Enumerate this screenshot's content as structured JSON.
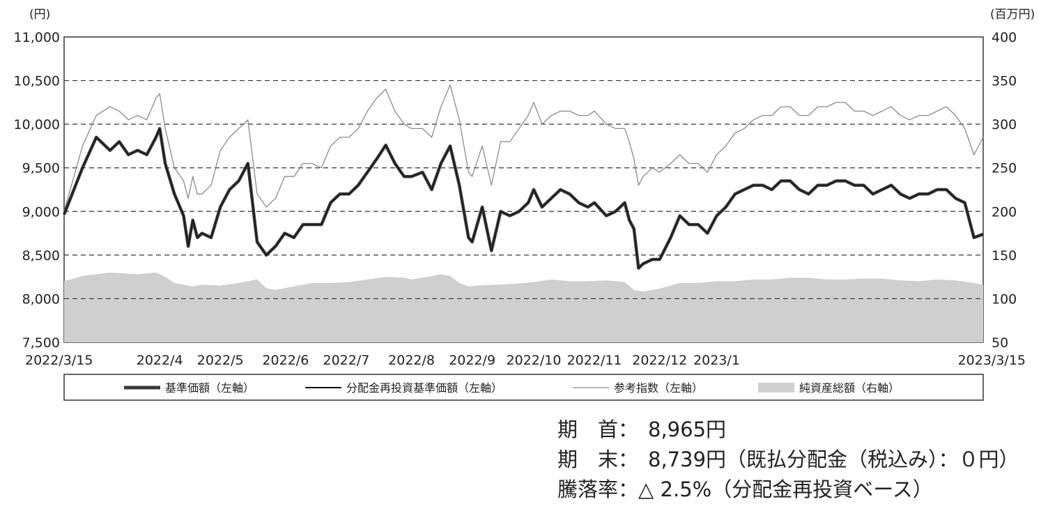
{
  "chart_data": {
    "type": "line",
    "left_axis": {
      "unit": "(円)",
      "ylim": [
        7500,
        11000
      ],
      "ticks": [
        "11,000",
        "10,500",
        "10,000",
        "9,500",
        "9,000",
        "8,500",
        "8,000",
        "7,500"
      ],
      "tick_values": [
        11000,
        10500,
        10000,
        9500,
        9000,
        8500,
        8000,
        7500
      ]
    },
    "right_axis": {
      "unit": "(百万円)",
      "ylim": [
        50,
        400
      ],
      "ticks": [
        "400",
        "350",
        "300",
        "250",
        "200",
        "150",
        "100",
        "50"
      ],
      "tick_values": [
        400,
        350,
        300,
        250,
        200,
        150,
        100,
        50
      ]
    },
    "x_labels": [
      {
        "label": "2022/3/15",
        "pos": 0
      },
      {
        "label": "2022/4",
        "pos": 0.104
      },
      {
        "label": "2022/5",
        "pos": 0.17
      },
      {
        "label": "2022/6",
        "pos": 0.241
      },
      {
        "label": "2022/7",
        "pos": 0.307
      },
      {
        "label": "2022/8",
        "pos": 0.378
      },
      {
        "label": "2022/9",
        "pos": 0.444
      },
      {
        "label": "2022/10",
        "pos": 0.511
      },
      {
        "label": "2022/11",
        "pos": 0.577
      },
      {
        "label": "2022/12",
        "pos": 0.648
      },
      {
        "label": "2023/1",
        "pos": 0.71
      },
      {
        "label": "2023/3/15",
        "pos": 1
      }
    ],
    "grid": "dashed horizontal",
    "legend_position": "bottom",
    "series": [
      {
        "name": "基準価額（左軸）",
        "axis": "left",
        "style": "thick-dark",
        "x": [
          0,
          0.02,
          0.035,
          0.05,
          0.06,
          0.07,
          0.08,
          0.09,
          0.1,
          0.104,
          0.11,
          0.12,
          0.13,
          0.135,
          0.14,
          0.145,
          0.15,
          0.16,
          0.17,
          0.18,
          0.19,
          0.2,
          0.21,
          0.22,
          0.23,
          0.24,
          0.25,
          0.26,
          0.27,
          0.28,
          0.29,
          0.3,
          0.31,
          0.32,
          0.33,
          0.34,
          0.35,
          0.36,
          0.37,
          0.378,
          0.39,
          0.4,
          0.41,
          0.42,
          0.43,
          0.44,
          0.444,
          0.455,
          0.465,
          0.475,
          0.485,
          0.495,
          0.505,
          0.511,
          0.52,
          0.53,
          0.54,
          0.55,
          0.56,
          0.57,
          0.577,
          0.59,
          0.6,
          0.61,
          0.615,
          0.62,
          0.625,
          0.63,
          0.64,
          0.648,
          0.66,
          0.67,
          0.68,
          0.69,
          0.7,
          0.71,
          0.72,
          0.73,
          0.74,
          0.75,
          0.76,
          0.77,
          0.78,
          0.79,
          0.8,
          0.81,
          0.82,
          0.83,
          0.84,
          0.85,
          0.86,
          0.87,
          0.88,
          0.89,
          0.9,
          0.91,
          0.92,
          0.93,
          0.94,
          0.95,
          0.96,
          0.97,
          0.98,
          0.99,
          1.0
        ],
        "y": [
          8965,
          9500,
          9850,
          9700,
          9800,
          9650,
          9700,
          9650,
          9850,
          9950,
          9550,
          9200,
          8950,
          8600,
          8900,
          8700,
          8750,
          8700,
          9050,
          9250,
          9350,
          9550,
          8650,
          8500,
          8600,
          8750,
          8700,
          8850,
          8850,
          8850,
          9100,
          9200,
          9200,
          9300,
          9450,
          9600,
          9760,
          9550,
          9400,
          9400,
          9450,
          9250,
          9550,
          9750,
          9300,
          8700,
          8650,
          9050,
          8550,
          9000,
          8950,
          9000,
          9100,
          9250,
          9050,
          9150,
          9250,
          9200,
          9100,
          9050,
          9100,
          8950,
          9000,
          9100,
          8900,
          8800,
          8350,
          8400,
          8450,
          8450,
          8700,
          8950,
          8850,
          8850,
          8750,
          8950,
          9050,
          9200,
          9250,
          9300,
          9300,
          9250,
          9350,
          9350,
          9250,
          9200,
          9300,
          9300,
          9350,
          9350,
          9300,
          9300,
          9200,
          9250,
          9300,
          9200,
          9150,
          9200,
          9200,
          9250,
          9250,
          9150,
          9100,
          8700,
          8739
        ]
      },
      {
        "name": "分配金再投資基準価額（左軸）",
        "axis": "left",
        "style": "thin-dark",
        "note_same_as": "基準価額（左軸）"
      },
      {
        "name": "参考指数（左軸）",
        "axis": "left",
        "style": "thin-gray",
        "x": [
          0,
          0.02,
          0.035,
          0.05,
          0.06,
          0.07,
          0.08,
          0.09,
          0.1,
          0.104,
          0.11,
          0.12,
          0.13,
          0.135,
          0.14,
          0.145,
          0.15,
          0.16,
          0.17,
          0.18,
          0.19,
          0.2,
          0.21,
          0.22,
          0.23,
          0.24,
          0.25,
          0.26,
          0.27,
          0.28,
          0.29,
          0.3,
          0.31,
          0.32,
          0.33,
          0.34,
          0.35,
          0.36,
          0.37,
          0.378,
          0.39,
          0.4,
          0.41,
          0.42,
          0.43,
          0.44,
          0.444,
          0.455,
          0.465,
          0.475,
          0.485,
          0.495,
          0.505,
          0.511,
          0.52,
          0.53,
          0.54,
          0.55,
          0.56,
          0.57,
          0.577,
          0.59,
          0.6,
          0.61,
          0.615,
          0.62,
          0.625,
          0.63,
          0.64,
          0.648,
          0.66,
          0.67,
          0.68,
          0.69,
          0.7,
          0.71,
          0.72,
          0.73,
          0.74,
          0.75,
          0.76,
          0.77,
          0.78,
          0.79,
          0.8,
          0.81,
          0.82,
          0.83,
          0.84,
          0.85,
          0.86,
          0.87,
          0.88,
          0.89,
          0.9,
          0.91,
          0.92,
          0.93,
          0.94,
          0.95,
          0.96,
          0.97,
          0.98,
          0.99,
          1.0
        ],
        "y": [
          9000,
          9750,
          10100,
          10200,
          10150,
          10050,
          10100,
          10050,
          10300,
          10350,
          9950,
          9500,
          9350,
          9150,
          9400,
          9200,
          9200,
          9300,
          9700,
          9850,
          9950,
          10050,
          9200,
          9050,
          9150,
          9400,
          9400,
          9550,
          9550,
          9500,
          9750,
          9850,
          9850,
          9950,
          10150,
          10300,
          10400,
          10150,
          10000,
          9950,
          9950,
          9850,
          10200,
          10450,
          10050,
          9450,
          9400,
          9750,
          9300,
          9800,
          9800,
          9950,
          10100,
          10250,
          10000,
          10100,
          10150,
          10150,
          10100,
          10100,
          10150,
          10000,
          9950,
          9950,
          9800,
          9600,
          9300,
          9400,
          9500,
          9450,
          9550,
          9650,
          9550,
          9550,
          9450,
          9650,
          9750,
          9900,
          9950,
          10050,
          10100,
          10100,
          10200,
          10200,
          10100,
          10100,
          10200,
          10200,
          10250,
          10250,
          10150,
          10150,
          10100,
          10150,
          10200,
          10100,
          10050,
          10100,
          10100,
          10150,
          10200,
          10100,
          9950,
          9650,
          9850
        ]
      }
    ],
    "area_series": {
      "name": "純資産総額（右軸）",
      "axis": "right",
      "style": "light-gray-area",
      "x": [
        0,
        0.02,
        0.05,
        0.08,
        0.1,
        0.11,
        0.12,
        0.13,
        0.14,
        0.15,
        0.17,
        0.19,
        0.2,
        0.21,
        0.22,
        0.23,
        0.25,
        0.27,
        0.29,
        0.31,
        0.33,
        0.35,
        0.37,
        0.378,
        0.39,
        0.41,
        0.42,
        0.43,
        0.44,
        0.45,
        0.47,
        0.49,
        0.511,
        0.53,
        0.55,
        0.57,
        0.59,
        0.61,
        0.62,
        0.63,
        0.65,
        0.67,
        0.69,
        0.71,
        0.73,
        0.75,
        0.77,
        0.79,
        0.81,
        0.83,
        0.85,
        0.87,
        0.89,
        0.91,
        0.93,
        0.95,
        0.97,
        0.99,
        1.0
      ],
      "y": [
        120,
        126,
        130,
        128,
        130,
        125,
        118,
        116,
        114,
        116,
        115,
        118,
        120,
        122,
        112,
        110,
        114,
        118,
        118,
        119,
        122,
        125,
        124,
        122,
        124,
        128,
        126,
        118,
        114,
        115,
        116,
        117,
        119,
        122,
        120,
        120,
        121,
        119,
        110,
        108,
        112,
        118,
        118,
        120,
        120,
        122,
        122,
        124,
        124,
        122,
        122,
        123,
        123,
        121,
        120,
        122,
        121,
        118,
        116
      ]
    }
  },
  "legend": {
    "items": [
      "基準価額（左軸）",
      "分配金再投資基準価額（左軸）",
      "参考指数（左軸）",
      "純資産総額（右軸）"
    ]
  },
  "summary": {
    "start_label": "期　首：",
    "start_value": "8,965円",
    "end_label": "期　末：",
    "end_value": "8,739円（既払分配金（税込み）：０円）",
    "change_label": "騰落率：",
    "change_value": "△ 2.5%（分配金再投資ベース）"
  },
  "colors": {
    "nav_line": "#3a3a3a",
    "reinvest_line": "#111111",
    "index_line": "#8a8a8a",
    "asset_area": "#cfcfcf",
    "grid": "#333333"
  }
}
